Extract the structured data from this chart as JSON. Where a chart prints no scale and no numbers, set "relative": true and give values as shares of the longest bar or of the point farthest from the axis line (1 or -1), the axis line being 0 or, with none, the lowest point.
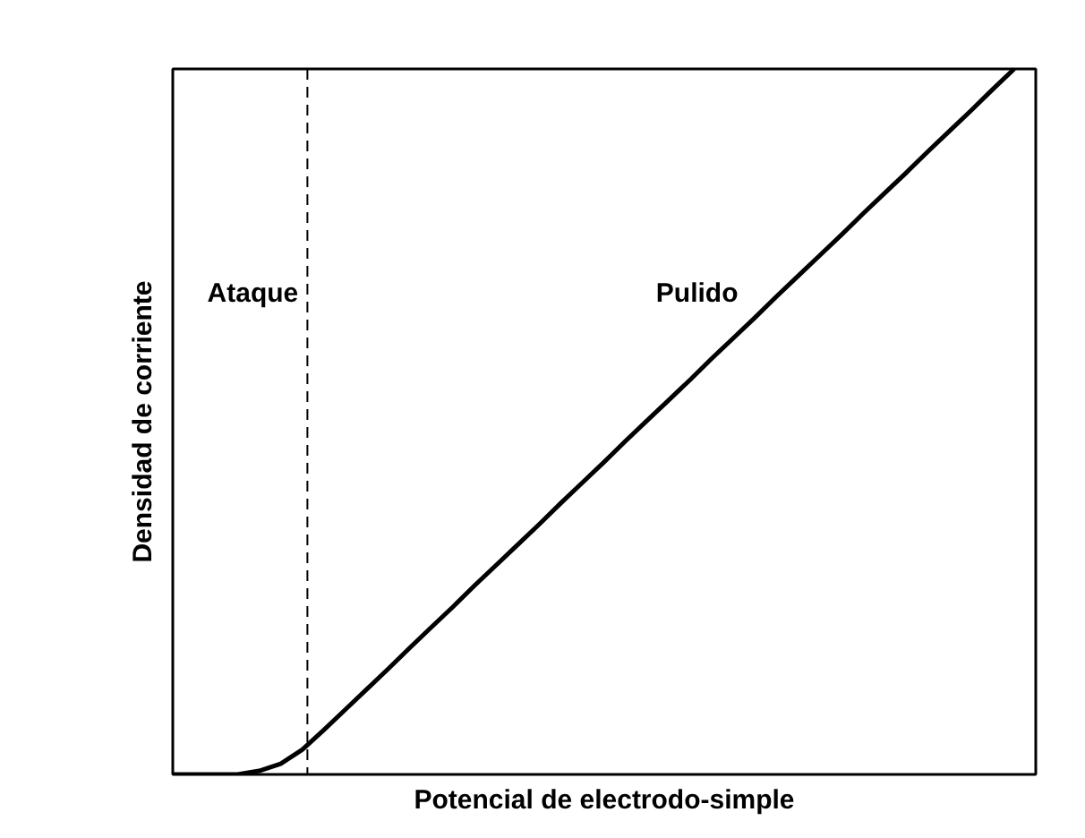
{
  "chart_data": {
    "type": "line",
    "relative": true,
    "xlabel": "Potencial de electrodo-simple",
    "ylabel": "Densidad de corriente",
    "categories": [
      null,
      null,
      null,
      null,
      null,
      null,
      null,
      null,
      null,
      null,
      null,
      null,
      null,
      null,
      null,
      null,
      null,
      null,
      null,
      null,
      null,
      null,
      null,
      null,
      null,
      null,
      null,
      null,
      null,
      null,
      null,
      null,
      null,
      null,
      null,
      null,
      null,
      null,
      null,
      null
    ],
    "series": [
      {
        "color": "#000000",
        "values": [
          0,
          0,
          0,
          0,
          0.005,
          0.015,
          0.035,
          0.063,
          0.092,
          0.121,
          0.15,
          0.18,
          0.209,
          0.238,
          0.268,
          0.297,
          0.326,
          0.355,
          0.385,
          0.414,
          0.443,
          0.473,
          0.502,
          0.531,
          0.56,
          0.59,
          0.619,
          0.648,
          0.678,
          0.707,
          0.736,
          0.765,
          0.795,
          0.824,
          0.853,
          0.883,
          0.912,
          0.941,
          0.971,
          1
        ]
      }
    ],
    "grid": false,
    "line_style": "solid",
    "marker": "none",
    "ref_lines": [
      {
        "axis": "x",
        "color": "#000000",
        "line_style": "dashed"
      }
    ],
    "annotations": [
      "Ataque",
      "Pulido"
    ]
  }
}
